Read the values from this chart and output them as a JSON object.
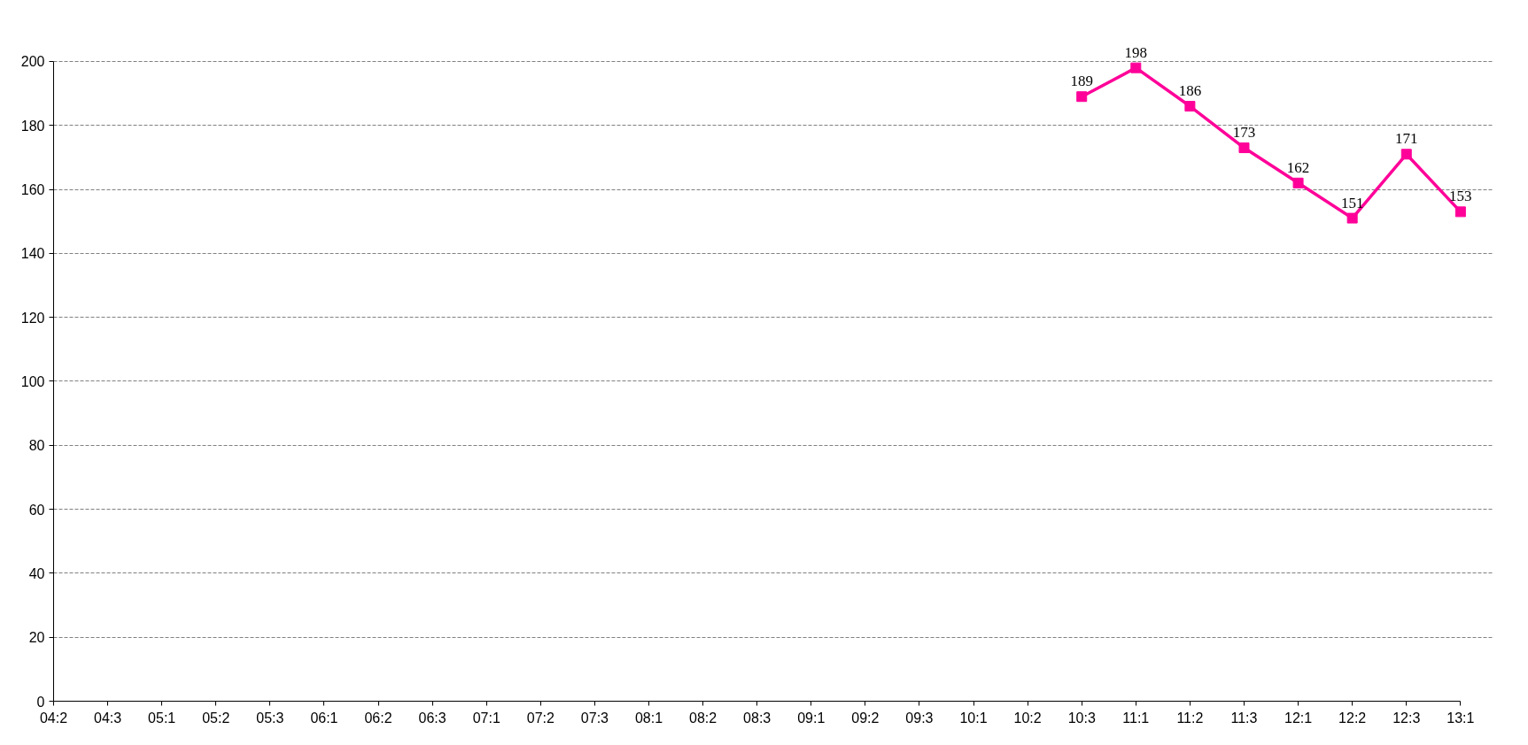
{
  "chart_data": {
    "type": "line",
    "categories": [
      "04:2",
      "04:3",
      "05:1",
      "05:2",
      "05:3",
      "06:1",
      "06:2",
      "06:3",
      "07:1",
      "07:2",
      "07:3",
      "08:1",
      "08:2",
      "08:3",
      "09:1",
      "09:2",
      "09:3",
      "10:1",
      "10:2",
      "10:3",
      "11:1",
      "11:2",
      "11:3",
      "12:1",
      "12:2",
      "12:3",
      "13:1"
    ],
    "series": [
      {
        "color": "#ff0099",
        "values": [
          null,
          null,
          null,
          null,
          null,
          null,
          null,
          null,
          null,
          null,
          null,
          null,
          null,
          null,
          null,
          null,
          null,
          null,
          null,
          189,
          198,
          186,
          173,
          162,
          151,
          171,
          153
        ]
      }
    ],
    "ylim": [
      0,
      200
    ],
    "yticks": [
      0,
      20,
      40,
      60,
      80,
      100,
      120,
      140,
      160,
      180,
      200
    ],
    "grid": "y",
    "marker": "square",
    "line_style": "solid",
    "data_labels": true
  }
}
